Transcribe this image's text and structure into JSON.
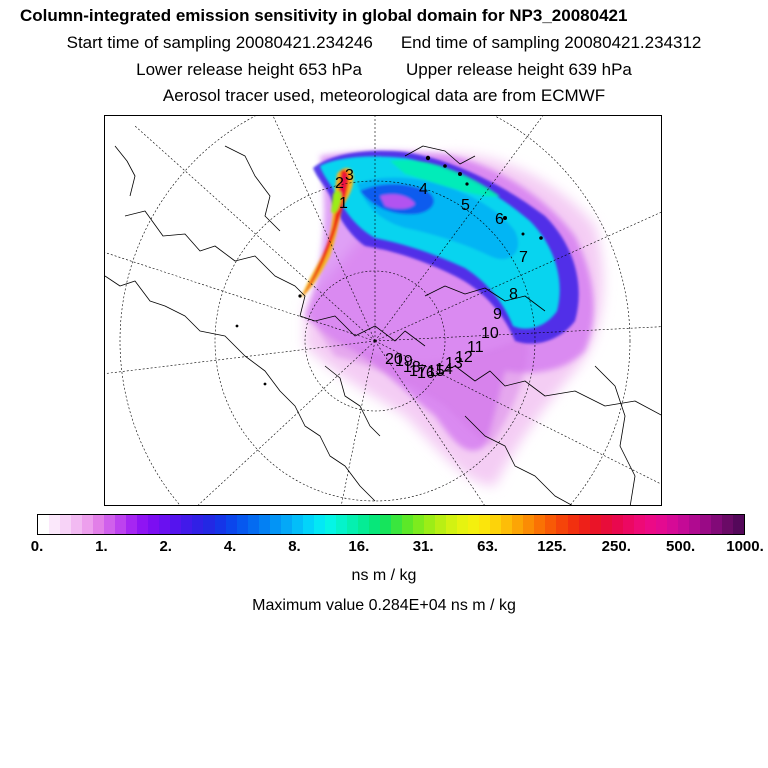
{
  "header": {
    "title": "Column-integrated emission sensitivity in global domain for NP3_20080421",
    "start_label": "Start time of sampling 20080421.234246",
    "end_label": "End time of sampling 20080421.234312",
    "lower_label": "Lower release height  653 hPa",
    "upper_label": "Upper release height  639 hPa",
    "info": "Aerosol tracer used, meteorological data are from ECMWF"
  },
  "map": {
    "projection": "polar stereographic (north pole)",
    "day_labels": [
      "1",
      "2",
      "3",
      "4",
      "5",
      "6",
      "7",
      "8",
      "9",
      "10",
      "11",
      "12",
      "13",
      "14",
      "15",
      "16",
      "17",
      "18",
      "19",
      "20"
    ]
  },
  "colorbar": {
    "tick_labels": [
      "0.",
      "1.",
      "2.",
      "4.",
      "8.",
      "16.",
      "31.",
      "63.",
      "125.",
      "250.",
      "500.",
      "1000."
    ],
    "colors": [
      "#ffffff",
      "#fbe8fb",
      "#f7d3f7",
      "#f2baf2",
      "#ed9fed",
      "#e27fe8",
      "#d060ec",
      "#bd42ef",
      "#a626f2",
      "#8f14f3",
      "#7c0ef2",
      "#6a10f0",
      "#5514ee",
      "#421aea",
      "#3120e6",
      "#2328e4",
      "#1535e8",
      "#0b46ec",
      "#0658ef",
      "#046bf1",
      "#0380f3",
      "#0394f5",
      "#04a8f7",
      "#03bef9",
      "#02d4fa",
      "#03e8f5",
      "#05f5e6",
      "#05f3cb",
      "#05f0b0",
      "#05ec95",
      "#07e77a",
      "#16e45c",
      "#3ae63e",
      "#5ce828",
      "#7deb1e",
      "#9ced17",
      "#b9ef14",
      "#d2f212",
      "#e6f310",
      "#f4f00e",
      "#fbe50c",
      "#fdd30a",
      "#fdbd08",
      "#fca505",
      "#fb8c04",
      "#fa7204",
      "#f85a06",
      "#f5440a",
      "#f2300f",
      "#ee2019",
      "#ea1428",
      "#e80d3a",
      "#e9084e",
      "#ec0862",
      "#ee0a76",
      "#ec0a86",
      "#e40a90",
      "#d60a96",
      "#c40a96",
      "#b00a90",
      "#9a0a86",
      "#820a78",
      "#6a0a66",
      "#54085a"
    ]
  },
  "footer": {
    "unit": "ns m / kg",
    "max_value": "Maximum value  0.284E+04 ns m / kg"
  }
}
